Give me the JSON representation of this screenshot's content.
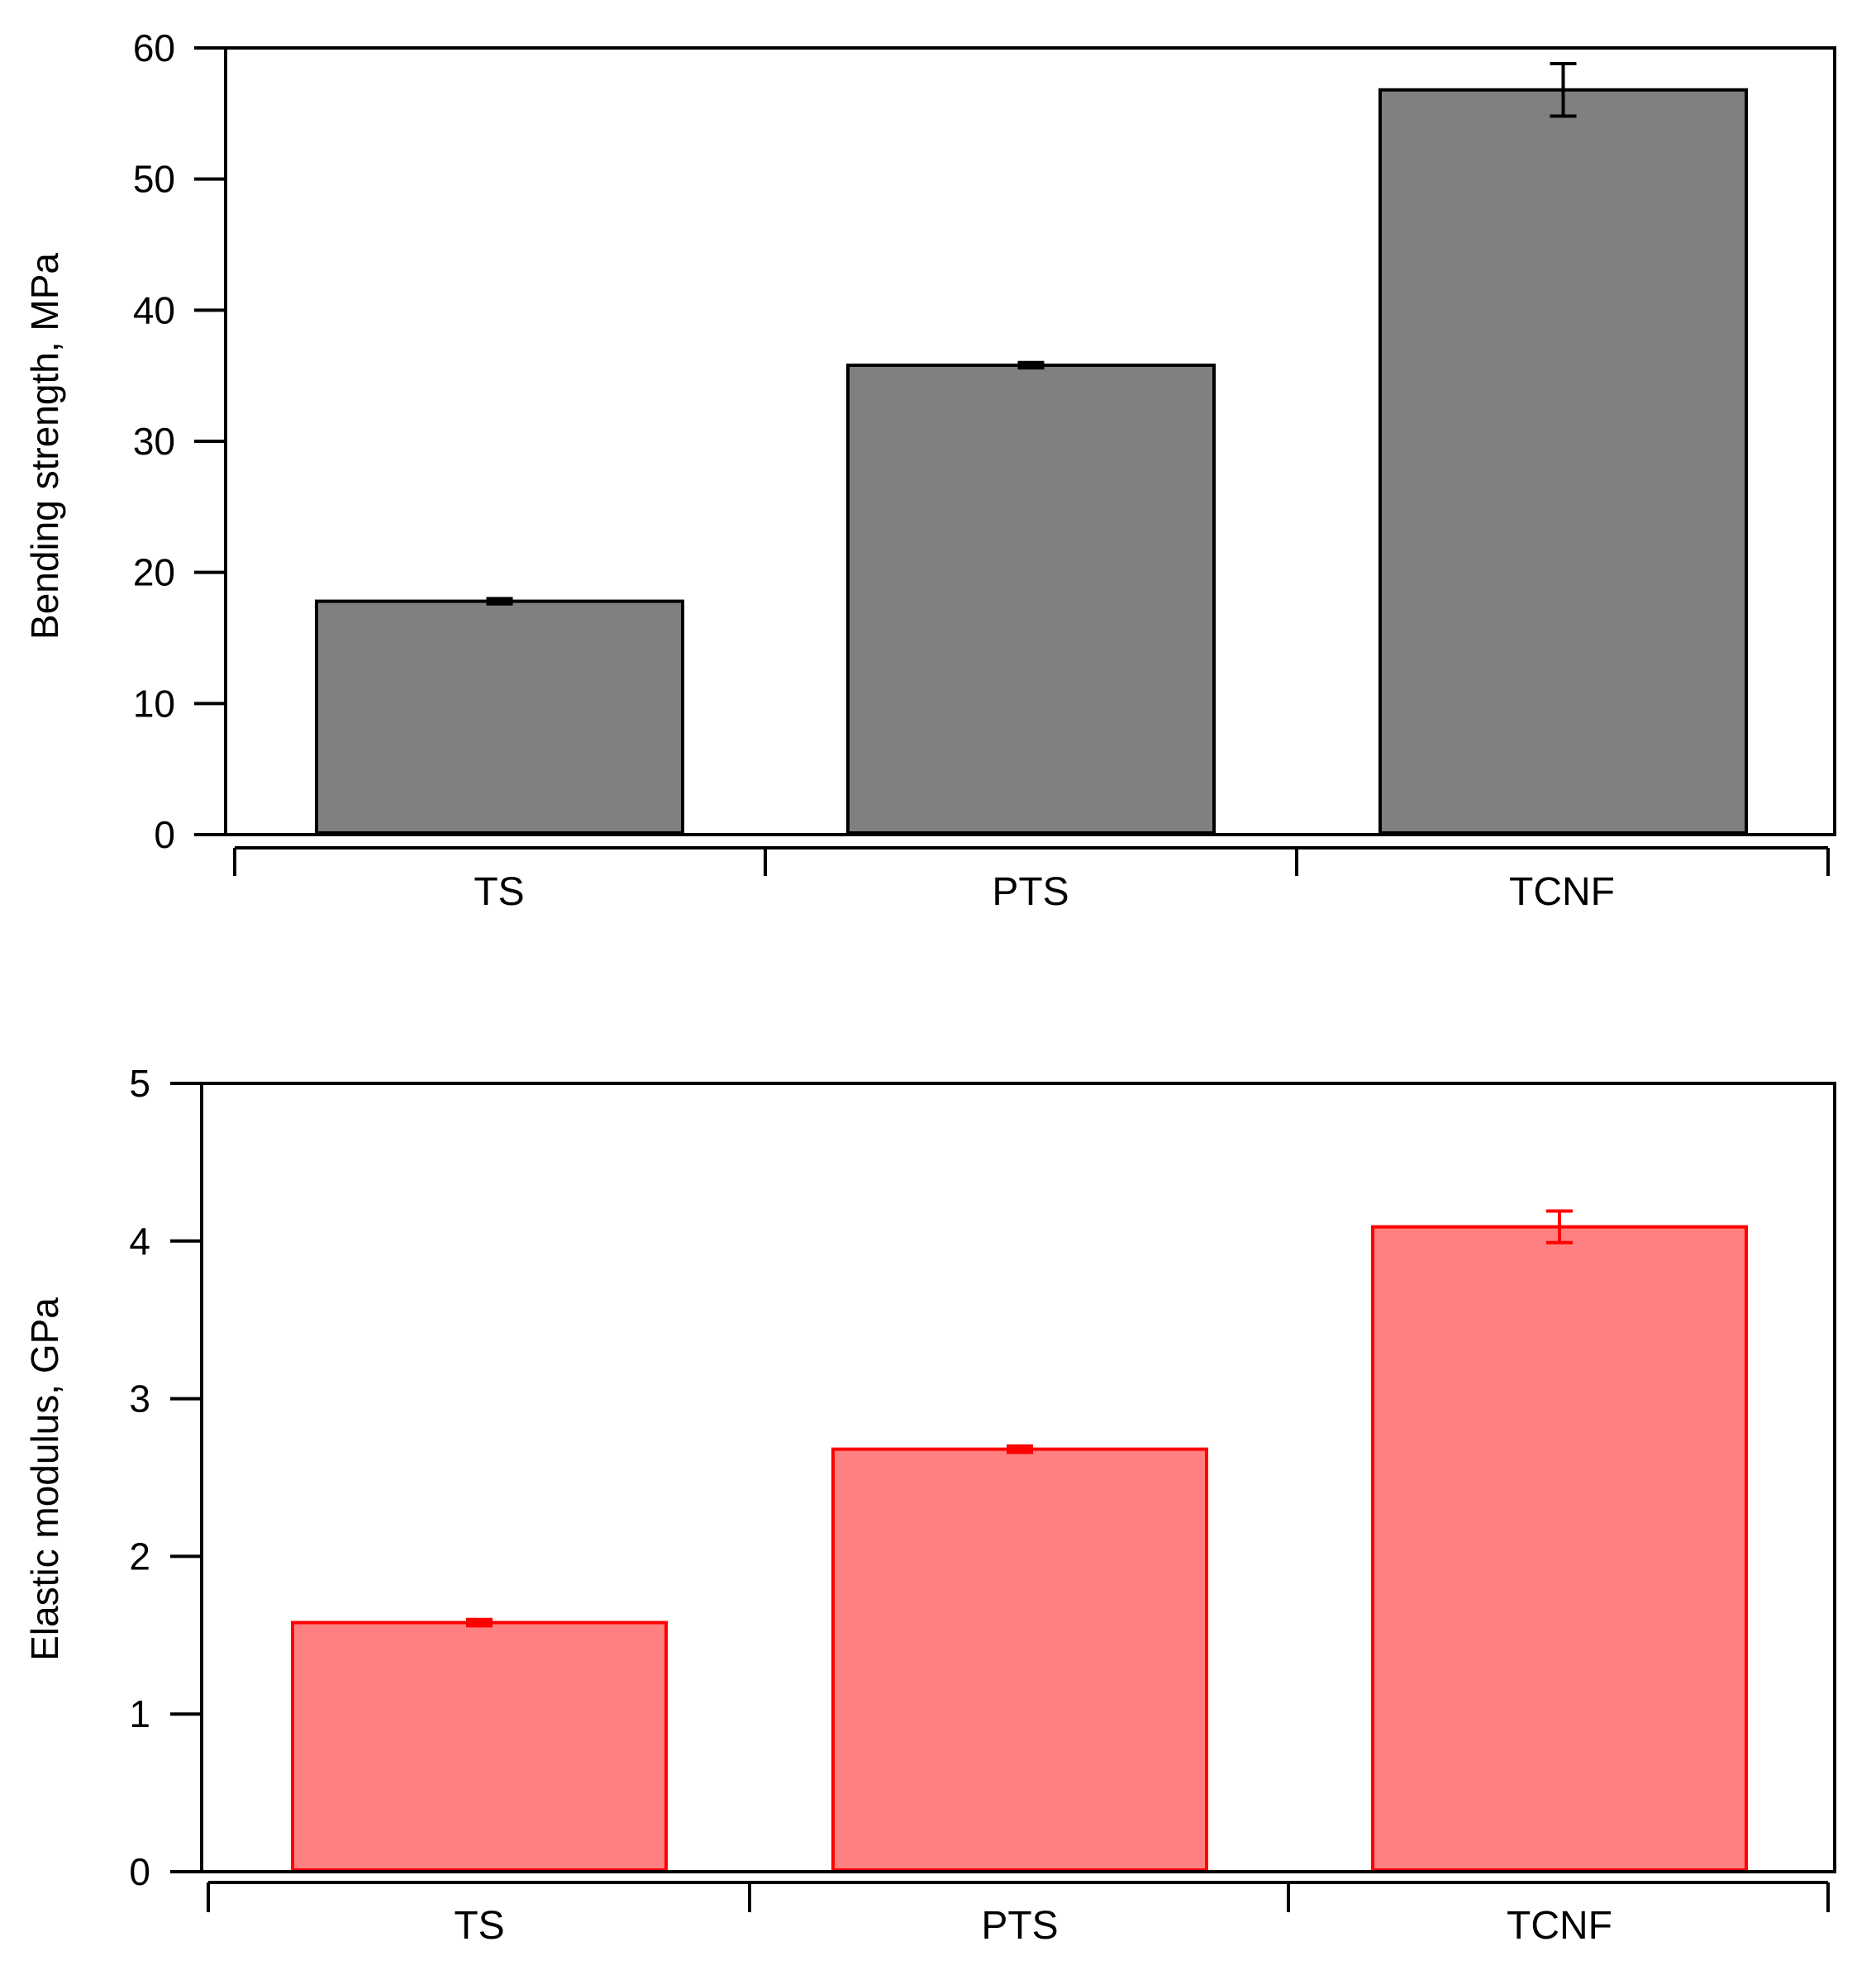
{
  "chart_data": [
    {
      "type": "bar",
      "categories": [
        "TS",
        "PTS",
        "TCNF"
      ],
      "values": [
        17.8,
        35.8,
        56.8
      ],
      "errors": [
        0.2,
        0.2,
        2.0
      ],
      "title": "",
      "xlabel": "",
      "ylabel": "Bending strength, MPa",
      "ylim": [
        0,
        60
      ],
      "yticks": [
        0,
        10,
        20,
        30,
        40,
        50,
        60
      ],
      "grid": false,
      "fill_color": "#808080",
      "edge_color": "#000000"
    },
    {
      "type": "bar",
      "categories": [
        "TS",
        "PTS",
        "TCNF"
      ],
      "values": [
        1.58,
        2.68,
        4.09
      ],
      "errors": [
        0.02,
        0.02,
        0.1
      ],
      "title": "",
      "xlabel": "",
      "ylabel": "Elastic modulus, GPa",
      "ylim": [
        0,
        5
      ],
      "yticks": [
        0,
        1,
        2,
        3,
        4,
        5
      ],
      "grid": false,
      "fill_color": "#ff8080",
      "edge_color": "#ff0000"
    }
  ]
}
